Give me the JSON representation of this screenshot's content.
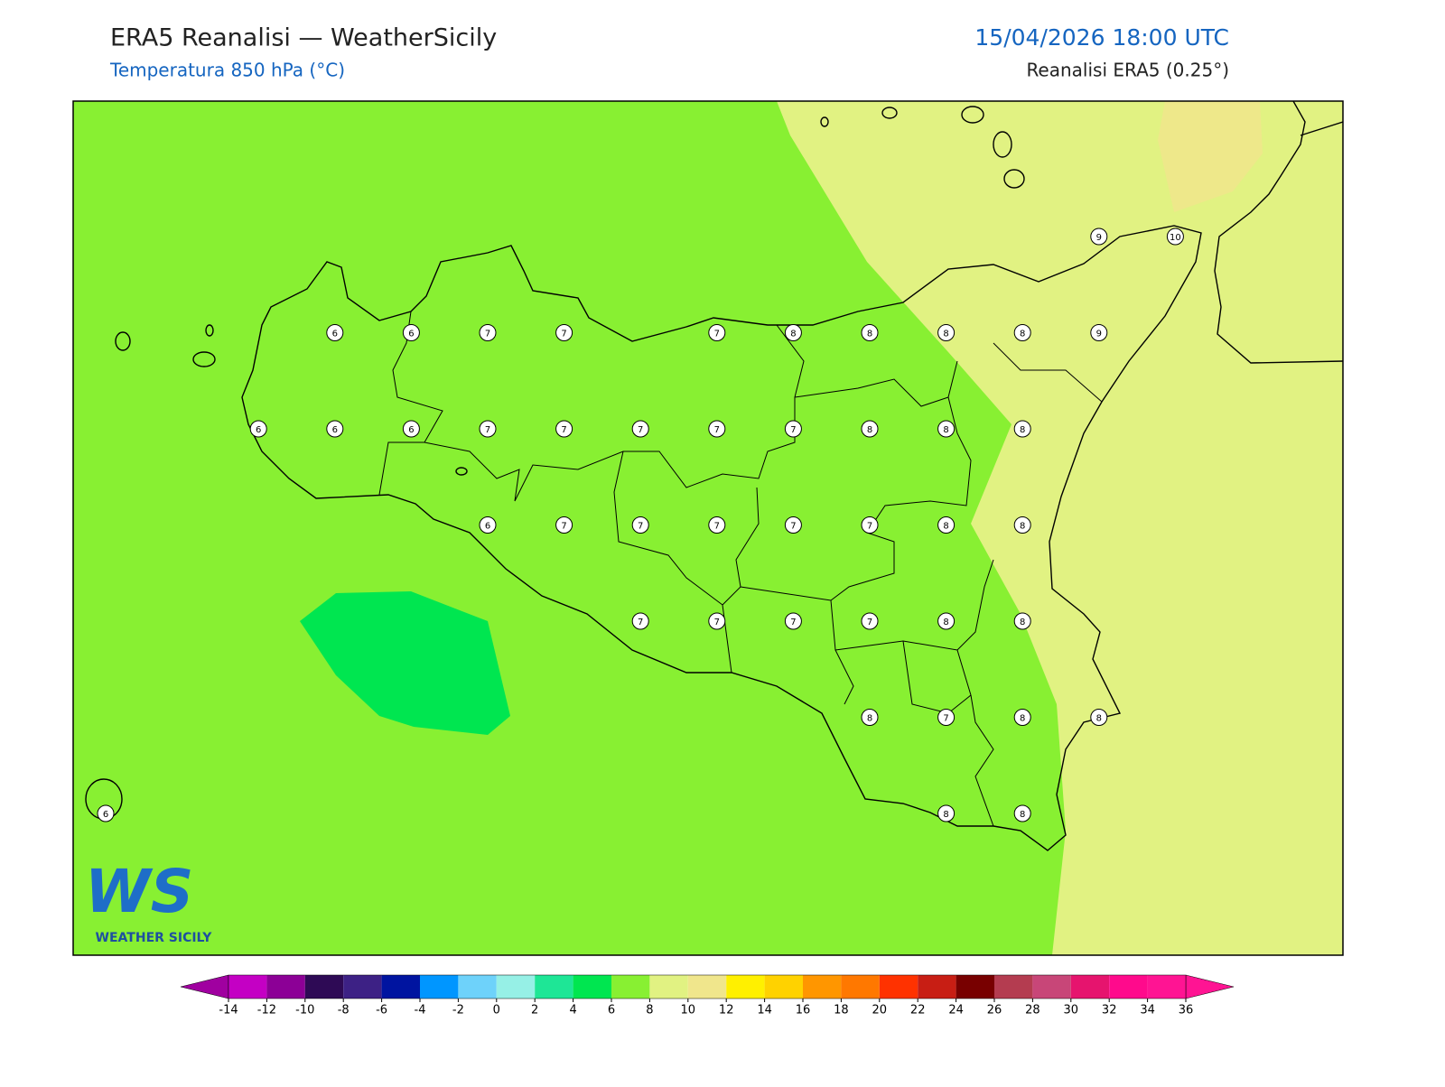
{
  "header": {
    "title": "ERA5 Reanalisi — WeatherSicily",
    "subtitle": "Temperatura 850 hPa (°C)",
    "datetime": "15/04/2026 18:00 UTC",
    "source": "Reanalisi ERA5 (0.25°)"
  },
  "map": {
    "grid_values": [
      [
        null,
        null,
        null,
        null,
        null,
        null,
        null,
        null,
        null,
        null,
        null,
        null,
        null,
        9,
        10
      ],
      [
        null,
        null,
        null,
        6,
        6,
        7,
        7,
        null,
        7,
        8,
        8,
        8,
        8,
        9,
        null
      ],
      [
        null,
        null,
        6,
        6,
        6,
        7,
        7,
        7,
        7,
        7,
        8,
        8,
        8,
        null,
        null
      ],
      [
        null,
        null,
        null,
        null,
        null,
        6,
        7,
        7,
        7,
        7,
        7,
        8,
        8,
        null,
        null
      ],
      [
        null,
        null,
        null,
        null,
        null,
        null,
        null,
        7,
        7,
        7,
        7,
        8,
        8,
        null,
        null
      ],
      [
        null,
        null,
        null,
        null,
        null,
        null,
        null,
        null,
        null,
        null,
        8,
        7,
        8,
        8,
        null
      ],
      [
        6,
        null,
        null,
        null,
        null,
        null,
        null,
        null,
        null,
        null,
        null,
        8,
        8,
        null,
        null
      ]
    ]
  },
  "logo": {
    "mark": "WS",
    "text": "WEATHER SICILY"
  },
  "colorbar": {
    "ticks": [
      -14,
      -12,
      -10,
      -8,
      -6,
      -4,
      -2,
      0,
      2,
      4,
      6,
      8,
      10,
      12,
      14,
      16,
      18,
      20,
      22,
      24,
      26,
      28,
      30,
      32,
      34,
      36
    ],
    "colors": [
      "#c400c4",
      "#8c0096",
      "#2e0a55",
      "#3d2185",
      "#0014a0",
      "#0096ff",
      "#6ed2fa",
      "#96f0e6",
      "#1ee696",
      "#00e650",
      "#88f032",
      "#e1f282",
      "#f0e68c",
      "#fff000",
      "#ffd200",
      "#ff9600",
      "#ff7800",
      "#ff3200",
      "#c81e14",
      "#780000",
      "#b43c50",
      "#c84678",
      "#e6146e",
      "#ff0a8c",
      "#ff1493"
    ],
    "under_color": "#a000a0",
    "over_color": "#ff1493"
  }
}
